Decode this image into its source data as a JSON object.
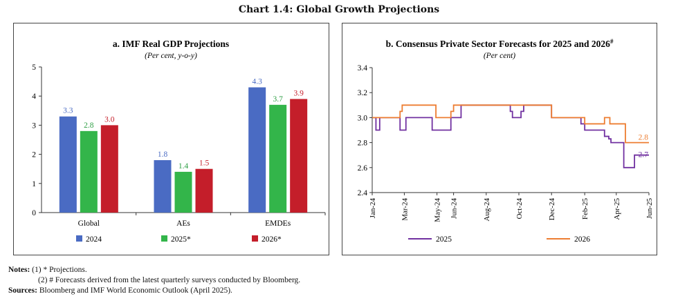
{
  "main_title": "Chart 1.4: Global Growth Projections",
  "notes": {
    "label": "Notes:",
    "line1": "(1)  * Projections.",
    "line2": "(2)  # Forecasts derived from the latest quarterly surveys conducted by Bloomberg."
  },
  "sources": {
    "label": "Sources:",
    "text": "Bloomberg and IMF World Economic Outlook (April 2025)."
  },
  "chart_data": [
    {
      "type": "bar",
      "title": "a. IMF Real GDP Projections",
      "subtitle": "(Per cent, y-o-y)",
      "categories": [
        "Global",
        "AEs",
        "EMDEs"
      ],
      "series": [
        {
          "name": "2024",
          "color": "#4a6bc3",
          "values": [
            3.3,
            1.8,
            4.3
          ]
        },
        {
          "name": "2025*",
          "color": "#33b54a",
          "values": [
            2.8,
            1.4,
            3.7
          ]
        },
        {
          "name": "2026*",
          "color": "#c41e2a",
          "values": [
            3.0,
            1.5,
            3.9
          ]
        }
      ],
      "label_colors": [
        "#4a6bc3",
        "#2e9e44",
        "#c41e2a"
      ],
      "value_labels": [
        [
          "3.3",
          "1.8",
          "4.3"
        ],
        [
          "2.8",
          "1.4",
          "3.7"
        ],
        [
          "3.0",
          "1.5",
          "3.9"
        ]
      ],
      "ylim": [
        0,
        5
      ],
      "yticks": [
        "0",
        "1",
        "2",
        "3",
        "4",
        "5"
      ],
      "grid": false,
      "legend_position": "bottom"
    },
    {
      "type": "line",
      "title": "b. Consensus Private Sector Forecasts for 2025 and 2026",
      "title_superscript": "#",
      "subtitle": "(Per cent)",
      "ylim": [
        2.4,
        3.4
      ],
      "yticks": [
        "2.4",
        "2.6",
        "2.8",
        "3.0",
        "3.2",
        "3.4"
      ],
      "xlim": [
        "2024-01-01",
        "2025-06-01"
      ],
      "xticks": [
        {
          "label": "Jan-24",
          "date": "2024-01-01"
        },
        {
          "label": "Mar-24",
          "date": "2024-03-01"
        },
        {
          "label": "May-24",
          "date": "2024-05-01"
        },
        {
          "label": "Jun-24",
          "date": "2024-06-01"
        },
        {
          "label": "Aug-24",
          "date": "2024-08-01"
        },
        {
          "label": "Oct-24",
          "date": "2024-10-01"
        },
        {
          "label": "Dec-24",
          "date": "2024-12-01"
        },
        {
          "label": "Feb-25",
          "date": "2025-02-01"
        },
        {
          "label": "Apr-25",
          "date": "2025-04-01"
        },
        {
          "label": "Jun-25",
          "date": "2025-06-01"
        }
      ],
      "grid": false,
      "legend_position": "bottom",
      "series": [
        {
          "name": "2025",
          "color": "#7030a0",
          "end_label": "2.7",
          "steps": [
            {
              "date": "2024-01-01",
              "value": 3.0
            },
            {
              "date": "2024-01-08",
              "value": 2.9
            },
            {
              "date": "2024-01-15",
              "value": 3.0
            },
            {
              "date": "2024-02-22",
              "value": 2.9
            },
            {
              "date": "2024-03-04",
              "value": 3.0
            },
            {
              "date": "2024-04-22",
              "value": 2.9
            },
            {
              "date": "2024-05-27",
              "value": 3.0
            },
            {
              "date": "2024-06-15",
              "value": 3.1
            },
            {
              "date": "2024-09-15",
              "value": 3.05
            },
            {
              "date": "2024-09-19",
              "value": 3.0
            },
            {
              "date": "2024-10-05",
              "value": 3.05
            },
            {
              "date": "2024-10-10",
              "value": 3.1
            },
            {
              "date": "2024-12-01",
              "value": 3.0
            },
            {
              "date": "2025-01-25",
              "value": 2.95
            },
            {
              "date": "2025-02-01",
              "value": 2.9
            },
            {
              "date": "2025-03-10",
              "value": 2.85
            },
            {
              "date": "2025-03-18",
              "value": 2.83
            },
            {
              "date": "2025-03-22",
              "value": 2.8
            },
            {
              "date": "2025-04-15",
              "value": 2.6
            },
            {
              "date": "2025-05-05",
              "value": 2.7
            },
            {
              "date": "2025-06-01",
              "value": 2.7
            }
          ]
        },
        {
          "name": "2026",
          "color": "#ed7d31",
          "end_label": "2.8",
          "steps": [
            {
              "date": "2024-01-01",
              "value": 3.0
            },
            {
              "date": "2024-02-22",
              "value": 3.05
            },
            {
              "date": "2024-02-26",
              "value": 3.1
            },
            {
              "date": "2024-04-29",
              "value": 3.0
            },
            {
              "date": "2024-05-27",
              "value": 3.05
            },
            {
              "date": "2024-06-01",
              "value": 3.1
            },
            {
              "date": "2024-12-01",
              "value": 3.0
            },
            {
              "date": "2025-02-01",
              "value": 2.95
            },
            {
              "date": "2025-03-10",
              "value": 3.0
            },
            {
              "date": "2025-03-20",
              "value": 2.95
            },
            {
              "date": "2025-04-18",
              "value": 2.8
            },
            {
              "date": "2025-06-01",
              "value": 2.8
            }
          ]
        }
      ]
    }
  ]
}
